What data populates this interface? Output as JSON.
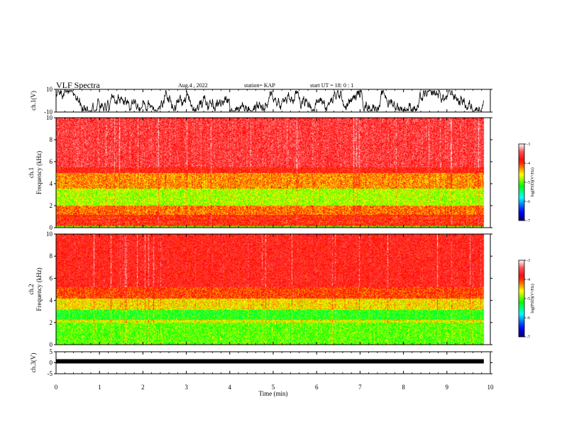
{
  "header": {
    "title": "VLF Spectra",
    "date": "Aug.4  , 2022",
    "station": "station= KAP",
    "start": "start  UT =   18: 0  : 1"
  },
  "chart_data": [
    {
      "type": "line",
      "name": "ch1-waveform",
      "ylabel": "ch.1(V)",
      "ylim": [
        -10,
        10
      ],
      "yticks": [
        "10",
        "-10"
      ],
      "xlim": [
        0,
        10
      ],
      "data_extent": [
        0,
        9.85
      ]
    },
    {
      "type": "heatmap",
      "name": "ch1-spectrogram",
      "ylabel": "ch.1\nFrequency  (kHz)",
      "ylim": [
        0,
        10
      ],
      "yticks": [
        "0",
        "2",
        "4",
        "6",
        "8",
        "10"
      ],
      "xlim": [
        0,
        10
      ],
      "colorbar": {
        "label": "log(PSD)(V²/Hz)",
        "range": [
          -7,
          -3
        ],
        "ticks": [
          "-3",
          "-4",
          "-5",
          "-6",
          "-7"
        ]
      }
    },
    {
      "type": "heatmap",
      "name": "ch2-spectrogram",
      "ylabel": "ch.2\nFrequency  (kHz)",
      "ylim": [
        0,
        10
      ],
      "yticks": [
        "0",
        "2",
        "4",
        "6",
        "8",
        "10"
      ],
      "xlim": [
        0,
        10
      ],
      "colorbar": {
        "label": "log(PSD)(V²/Hz)",
        "range": [
          -7,
          -3
        ],
        "ticks": [
          "-3",
          "-4",
          "-5",
          "-6",
          "-7"
        ]
      }
    },
    {
      "type": "line",
      "name": "ch3-waveform",
      "ylabel": "ch.3(V)",
      "ylim": [
        -5,
        5
      ],
      "yticks": [
        "5",
        "0",
        "-5"
      ],
      "xlim": [
        0,
        10
      ],
      "data_extent": [
        0,
        9.85
      ]
    }
  ],
  "xaxis": {
    "label": "Time  (min)",
    "ticks": [
      "0",
      "1",
      "2",
      "3",
      "4",
      "5",
      "6",
      "7",
      "8",
      "9",
      "10"
    ],
    "range": [
      0,
      10
    ]
  },
  "colors": {
    "colormap": [
      "#000099",
      "#0000ff",
      "#00ffff",
      "#00ff00",
      "#ffff00",
      "#ff0000",
      "#ffffff"
    ]
  }
}
